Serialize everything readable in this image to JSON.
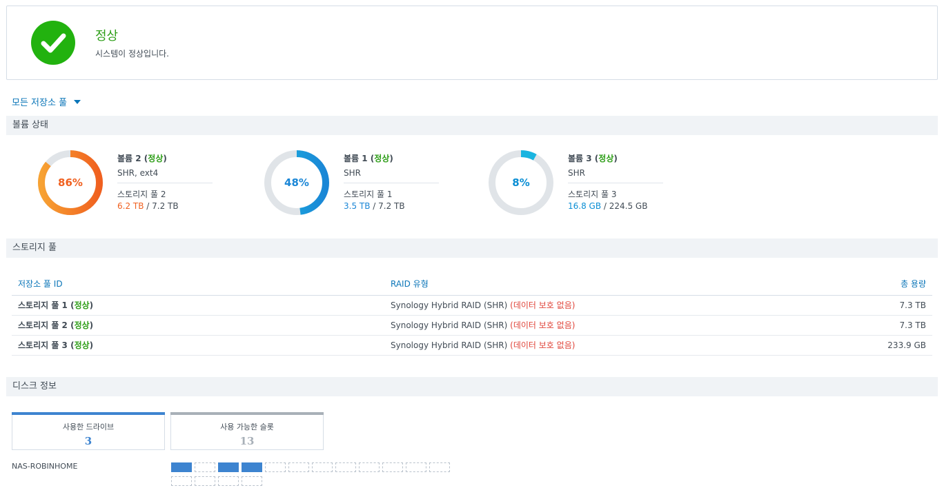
{
  "status": {
    "title": "정상",
    "subtitle": "시스템이 정상입니다.",
    "icon": "check-circle-icon",
    "color": "#22b20f"
  },
  "pool_selector": {
    "label": "모든 저장소 풀"
  },
  "sections": {
    "volume_status": "볼륨 상태",
    "storage_pool": "스토리지 풀",
    "disk_info": "디스크 정보"
  },
  "volumes": [
    {
      "name": "볼륨 2",
      "state": "정상",
      "percent": 86,
      "percent_label": "86%",
      "type": "SHR, ext4",
      "pool": "스토리지 풀 2",
      "used": "6.2 TB",
      "total": "7.2 TB",
      "color": "#f0601f"
    },
    {
      "name": "볼륨 1",
      "state": "정상",
      "percent": 48,
      "percent_label": "48%",
      "type": "SHR",
      "pool": "스토리지 풀 1",
      "used": "3.5 TB",
      "total": "7.2 TB",
      "color": "#1a86d6"
    },
    {
      "name": "볼륨 3",
      "state": "정상",
      "percent": 8,
      "percent_label": "8%",
      "type": "SHR",
      "pool": "스토리지 풀 3",
      "used": "16.8 GB",
      "total": "224.5 GB",
      "color": "#0a8ed4"
    }
  ],
  "pool_table": {
    "headers": {
      "id": "저장소 풀 ID",
      "raid": "RAID 유형",
      "capacity": "총 용량"
    },
    "rows": [
      {
        "name": "스토리지 풀 1",
        "state": "정상",
        "raid": "Synology Hybrid RAID (SHR)",
        "warning": "(데이터 보호 없음)",
        "capacity": "7.3 TB"
      },
      {
        "name": "스토리지 풀 2",
        "state": "정상",
        "raid": "Synology Hybrid RAID (SHR)",
        "warning": "(데이터 보호 없음)",
        "capacity": "7.3 TB"
      },
      {
        "name": "스토리지 풀 3",
        "state": "정상",
        "raid": "Synology Hybrid RAID (SHR)",
        "warning": "(데이터 보호 없음)",
        "capacity": "233.9 GB"
      }
    ]
  },
  "disk_info": {
    "used_drives": {
      "label": "사용한 드라이브",
      "value": "3",
      "color": "#3d84d0"
    },
    "available_slots": {
      "label": "사용 가능한 슬롯",
      "value": "13",
      "color": "#a8b0b8"
    },
    "nas_name": "NAS-ROBINHOME",
    "slots": [
      true,
      false,
      true,
      true,
      false,
      false,
      false,
      false,
      false,
      false,
      false,
      false,
      false,
      false,
      false,
      false
    ]
  }
}
